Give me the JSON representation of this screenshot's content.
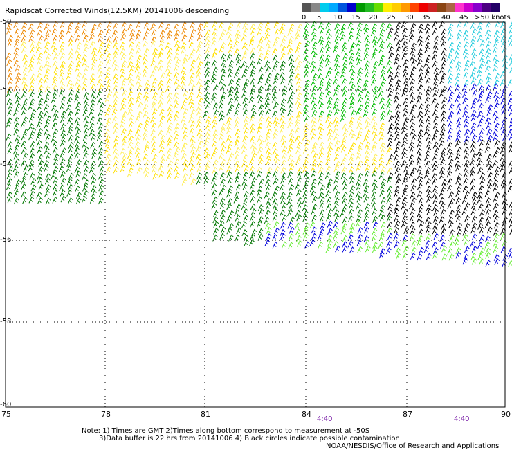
{
  "title": "Rapidscat Corrected Winds(12.5KM) 20141006 descending",
  "legend": {
    "swatches": [
      "#555555",
      "#888888",
      "#00ccee",
      "#00aaff",
      "#0055dd",
      "#0000cc",
      "#009900",
      "#22bb22",
      "#66dd00",
      "#ffee00",
      "#ffcc00",
      "#ff9900",
      "#ff4400",
      "#ee0000",
      "#cc2222",
      "#8b4513",
      "#aa6644",
      "#ff33cc",
      "#cc00cc",
      "#8800cc",
      "#4b0082",
      "#220066"
    ],
    "labels": [
      "0",
      "5",
      "10",
      "15",
      "20",
      "25",
      "30",
      "35",
      "40",
      "45",
      ">50 knots"
    ]
  },
  "axes": {
    "lat_labels": [
      "-50",
      "-52",
      "-54",
      "-56",
      "-58",
      "-60"
    ],
    "lon_labels": [
      "75",
      "78",
      "81",
      "84",
      "87",
      "90"
    ]
  },
  "time_labels": [
    "4:40",
    "4:40"
  ],
  "notes": {
    "line1": "Note: 1) Times are GMT 2)Times along bottom correspond to measurement at -50S",
    "line2": "3)Data buffer is 22 hrs from 20141006 4) Black circles indicate possible contamination",
    "credit": "NOAA/NESDIS/Office of Research and Applications"
  },
  "wind_colors": {
    "black": "#000000",
    "cyan": "#22ccdd",
    "blue": "#0000dd",
    "dark_green": "#007700",
    "green": "#00bb00",
    "light_green": "#66ee33",
    "yellow": "#ffe000",
    "light_yellow": "#ffee55",
    "orange": "#ee8800",
    "brown": "#aa5500"
  }
}
